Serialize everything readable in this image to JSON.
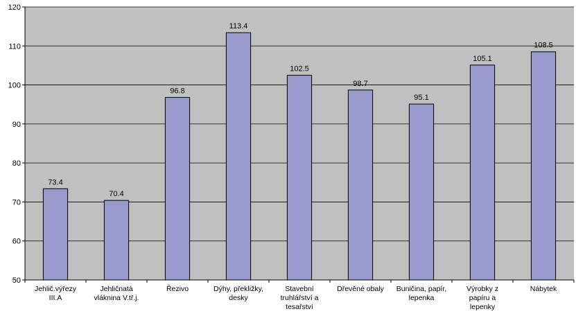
{
  "chart_data": {
    "type": "bar",
    "categories": [
      [
        "Jehlič.výřezy",
        "III.A"
      ],
      [
        "Jehličnatá",
        "vláknina V.tř.j."
      ],
      [
        "Řezivo"
      ],
      [
        "Dýhy, překližky,",
        "desky"
      ],
      [
        "Stavební",
        "truhlářství a",
        "tesařství"
      ],
      [
        "Dřevěné obaly"
      ],
      [
        "Buničina, papír,",
        "lepenka"
      ],
      [
        "Výrobky z",
        "papíru a",
        "lepenky"
      ],
      [
        "Nábytek"
      ]
    ],
    "values": [
      73.4,
      70.4,
      96.8,
      113.4,
      102.5,
      98.7,
      95.1,
      105.1,
      108.5
    ],
    "value_labels": [
      "73.4",
      "70.4",
      "96.8",
      "113.4",
      "102.5",
      "98.7",
      "95.1",
      "105.1",
      "108.5"
    ],
    "ylim": [
      50,
      120
    ],
    "yticks": [
      50,
      60,
      70,
      80,
      90,
      100,
      110,
      120
    ],
    "grid": true,
    "legend": "none",
    "colors": {
      "plot_background": "#c0c0c0",
      "bar_fill": "#9999cc",
      "bar_stroke": "#000000",
      "gridline": "#000000"
    }
  }
}
